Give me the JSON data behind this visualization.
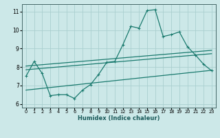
{
  "xlabel": "Humidex (Indice chaleur)",
  "bg_color": "#cce8e8",
  "grid_color": "#aacfcf",
  "line_color": "#1a7a6e",
  "xlim": [
    -0.5,
    23.5
  ],
  "ylim": [
    5.8,
    11.4
  ],
  "xticks": [
    0,
    1,
    2,
    3,
    4,
    5,
    6,
    7,
    8,
    9,
    10,
    11,
    12,
    13,
    14,
    15,
    16,
    17,
    18,
    19,
    20,
    21,
    22,
    23
  ],
  "yticks": [
    6,
    7,
    8,
    9,
    10,
    11
  ],
  "series1_x": [
    0,
    1,
    2,
    3,
    4,
    5,
    6,
    7,
    8,
    9,
    10,
    11,
    12,
    13,
    14,
    15,
    16,
    17,
    18,
    19,
    20,
    21,
    22,
    23
  ],
  "series1_y": [
    7.5,
    8.3,
    7.65,
    6.45,
    6.5,
    6.5,
    6.3,
    6.75,
    7.05,
    7.6,
    8.25,
    8.3,
    9.2,
    10.2,
    10.1,
    11.05,
    11.1,
    9.65,
    9.75,
    9.9,
    9.1,
    8.65,
    8.15,
    7.8
  ],
  "series2_x": [
    0,
    23
  ],
  "series2_y": [
    8.05,
    8.9
  ],
  "series3_x": [
    0,
    23
  ],
  "series3_y": [
    7.85,
    8.72
  ],
  "series4_x": [
    0,
    23
  ],
  "series4_y": [
    6.75,
    7.82
  ]
}
